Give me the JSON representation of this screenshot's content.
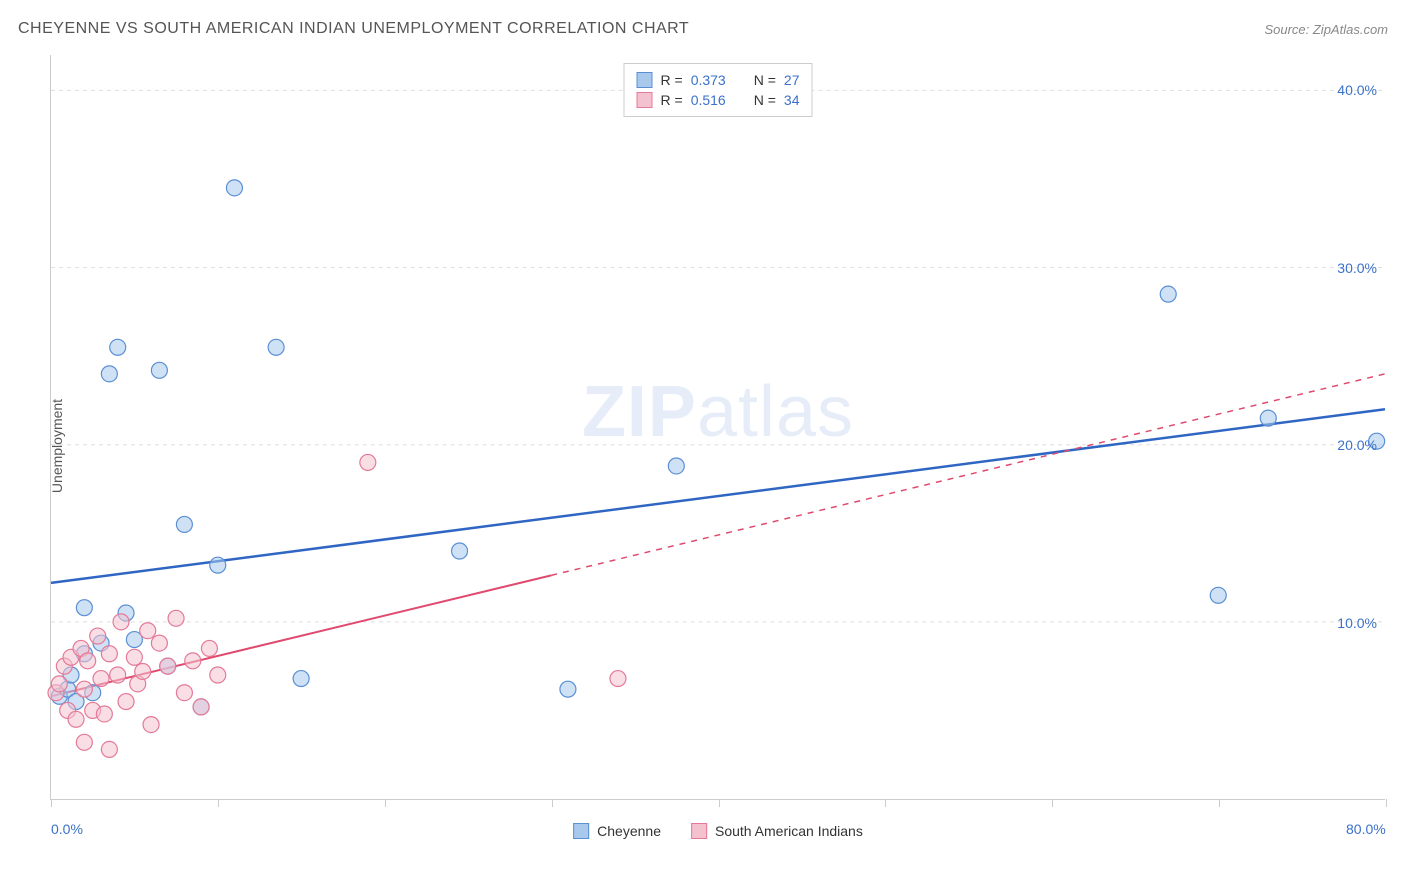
{
  "title": "CHEYENNE VS SOUTH AMERICAN INDIAN UNEMPLOYMENT CORRELATION CHART",
  "source": "Source: ZipAtlas.com",
  "ylabel": "Unemployment",
  "watermark_a": "ZIP",
  "watermark_b": "atlas",
  "chart": {
    "type": "scatter",
    "xlim": [
      0,
      80
    ],
    "ylim": [
      0,
      42
    ],
    "x_ticks": [
      0,
      10,
      20,
      30,
      40,
      50,
      60,
      70,
      80
    ],
    "x_tick_labels": {
      "0": "0.0%",
      "80": "80.0%"
    },
    "y_gridlines": [
      10,
      20,
      30,
      40
    ],
    "y_tick_labels": {
      "10": "10.0%",
      "20": "20.0%",
      "30": "30.0%",
      "40": "40.0%"
    },
    "background_color": "#ffffff",
    "grid_color": "#dddddd",
    "axis_color": "#cccccc",
    "axis_label_color": "#3b71ca",
    "series": [
      {
        "name": "Cheyenne",
        "color_fill": "#a8c8ec",
        "color_stroke": "#5a8fd4",
        "marker_radius": 8,
        "trend_color": "#2f66c4",
        "trend_width": 2.5,
        "trend": {
          "x1": 0,
          "y1": 12.2,
          "x2": 80,
          "y2": 22.0,
          "solid_until_x": 80
        },
        "points": [
          [
            0.5,
            5.8
          ],
          [
            1.0,
            6.2
          ],
          [
            1.2,
            7.0
          ],
          [
            1.5,
            5.5
          ],
          [
            2.0,
            8.2
          ],
          [
            2.0,
            10.8
          ],
          [
            2.5,
            6.0
          ],
          [
            3.0,
            8.8
          ],
          [
            3.5,
            24.0
          ],
          [
            4.0,
            25.5
          ],
          [
            4.5,
            10.5
          ],
          [
            5.0,
            9.0
          ],
          [
            6.5,
            24.2
          ],
          [
            7.0,
            7.5
          ],
          [
            8.0,
            15.5
          ],
          [
            9.0,
            5.2
          ],
          [
            10.0,
            13.2
          ],
          [
            11.0,
            34.5
          ],
          [
            13.5,
            25.5
          ],
          [
            15.0,
            6.8
          ],
          [
            24.5,
            14.0
          ],
          [
            31.0,
            6.2
          ],
          [
            37.5,
            18.8
          ],
          [
            67.0,
            28.5
          ],
          [
            70.0,
            11.5
          ],
          [
            73.0,
            21.5
          ],
          [
            79.5,
            20.2
          ]
        ]
      },
      {
        "name": "South American Indians",
        "color_fill": "#f4c2cf",
        "color_stroke": "#e47a97",
        "marker_radius": 8,
        "trend_color": "#e04a6f",
        "trend_width": 2,
        "trend": {
          "x1": 0,
          "y1": 5.8,
          "x2": 80,
          "y2": 24.0,
          "solid_until_x": 30
        },
        "points": [
          [
            0.3,
            6.0
          ],
          [
            0.5,
            6.5
          ],
          [
            0.8,
            7.5
          ],
          [
            1.0,
            5.0
          ],
          [
            1.2,
            8.0
          ],
          [
            1.5,
            4.5
          ],
          [
            1.8,
            8.5
          ],
          [
            2.0,
            6.2
          ],
          [
            2.0,
            3.2
          ],
          [
            2.2,
            7.8
          ],
          [
            2.5,
            5.0
          ],
          [
            2.8,
            9.2
          ],
          [
            3.0,
            6.8
          ],
          [
            3.2,
            4.8
          ],
          [
            3.5,
            8.2
          ],
          [
            3.5,
            2.8
          ],
          [
            4.0,
            7.0
          ],
          [
            4.2,
            10.0
          ],
          [
            4.5,
            5.5
          ],
          [
            5.0,
            8.0
          ],
          [
            5.2,
            6.5
          ],
          [
            5.5,
            7.2
          ],
          [
            5.8,
            9.5
          ],
          [
            6.0,
            4.2
          ],
          [
            6.5,
            8.8
          ],
          [
            7.0,
            7.5
          ],
          [
            7.5,
            10.2
          ],
          [
            8.0,
            6.0
          ],
          [
            8.5,
            7.8
          ],
          [
            9.0,
            5.2
          ],
          [
            9.5,
            8.5
          ],
          [
            10.0,
            7.0
          ],
          [
            19.0,
            19.0
          ],
          [
            34.0,
            6.8
          ]
        ]
      }
    ]
  },
  "legend_top": [
    {
      "swatch_fill": "#a8c8ec",
      "swatch_stroke": "#5a8fd4",
      "r_label": "R =",
      "r_val": "0.373",
      "n_label": "N =",
      "n_val": "27"
    },
    {
      "swatch_fill": "#f4c2cf",
      "swatch_stroke": "#e47a97",
      "r_label": "R =",
      "r_val": "0.516",
      "n_label": "N =",
      "n_val": "34"
    }
  ],
  "legend_bottom": [
    {
      "swatch_fill": "#a8c8ec",
      "swatch_stroke": "#5a8fd4",
      "label": "Cheyenne"
    },
    {
      "swatch_fill": "#f4c2cf",
      "swatch_stroke": "#e47a97",
      "label": "South American Indians"
    }
  ]
}
